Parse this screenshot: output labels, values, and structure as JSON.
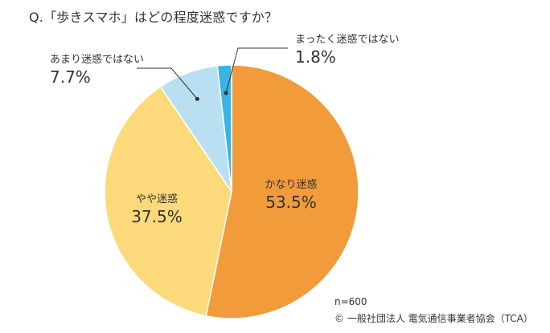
{
  "title": "Q.「歩きスマホ」はどの程度迷惑ですか？",
  "chart_data": {
    "type": "pie",
    "categories": [
      "かなり迷惑",
      "やや迷惑",
      "あまり迷惑ではない",
      "まったく迷惑ではない"
    ],
    "values": [
      53.5,
      37.5,
      7.7,
      1.8
    ],
    "value_labels": [
      "53.5%",
      "37.5%",
      "7.7%",
      "1.8%"
    ],
    "colors": [
      "#F29B3B",
      "#FCD97A",
      "#B9E0F2",
      "#3AB4E3"
    ],
    "start": "12 o'clock, clockwise",
    "legend": "none"
  },
  "footnote": {
    "n": "n=600",
    "source": "© 一般社団法人 電気通信事業者協会（TCA）"
  }
}
